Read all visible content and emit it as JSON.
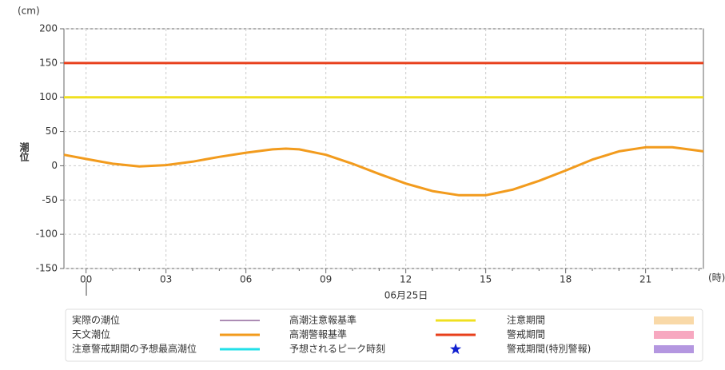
{
  "chart_data": {
    "type": "line",
    "y_unit": "(cm)",
    "x_unit": "(時)",
    "ylabel": "潮位",
    "xlabel": "06月25日",
    "x": [
      -0.83,
      0,
      1,
      2,
      3,
      4,
      5,
      6,
      7,
      7.5,
      8,
      9,
      10,
      11,
      12,
      13,
      14,
      15,
      16,
      17,
      18,
      19,
      20,
      21,
      22,
      23,
      23.17
    ],
    "xlim": [
      -0.83,
      23.17
    ],
    "xticks": [
      {
        "value": 0,
        "label": "00"
      },
      {
        "value": 3,
        "label": "03"
      },
      {
        "value": 6,
        "label": "06"
      },
      {
        "value": 9,
        "label": "09"
      },
      {
        "value": 12,
        "label": "12"
      },
      {
        "value": 15,
        "label": "15"
      },
      {
        "value": 18,
        "label": "18"
      },
      {
        "value": 21,
        "label": "21"
      }
    ],
    "xminorticks": [
      1,
      2,
      4,
      5,
      7,
      8,
      10,
      11,
      13,
      14,
      16,
      17,
      19,
      20,
      22,
      23
    ],
    "ylim": [
      -150,
      200
    ],
    "yticks": [
      -150,
      -100,
      -50,
      0,
      50,
      100,
      150,
      200
    ],
    "grid": true,
    "series": [
      {
        "name": "実際の潮位",
        "color": "#5a1a6a",
        "symbol": "thin-line",
        "values": [
          null,
          null,
          null,
          null,
          null,
          null,
          null,
          null,
          null,
          null,
          null,
          null,
          null,
          null,
          null,
          null,
          null,
          null,
          null,
          null,
          null,
          null,
          null,
          null,
          null,
          null,
          null
        ]
      },
      {
        "name": "天文潮位",
        "color": "#f29b1d",
        "symbol": "line",
        "values": [
          16,
          10,
          3,
          -1,
          1,
          6,
          13,
          19,
          24,
          25,
          24,
          16,
          3,
          -12,
          -26,
          -37,
          -43,
          -43,
          -35,
          -22,
          -7,
          9,
          21,
          27,
          27,
          22,
          21
        ]
      },
      {
        "name": "注意警戒期間の予想最高潮位",
        "color": "#22e0e8",
        "symbol": "line",
        "values": [
          null,
          null,
          null,
          null,
          null,
          null,
          null,
          null,
          null,
          null,
          null,
          null,
          null,
          null,
          null,
          null,
          null,
          null,
          null,
          null,
          null,
          null,
          null,
          null,
          null,
          null,
          null
        ]
      },
      {
        "name": "高潮注意報基準",
        "color": "#f0e020",
        "symbol": "line",
        "value": 100
      },
      {
        "name": "高潮警報基準",
        "color": "#e8401c",
        "symbol": "line",
        "value": 150
      },
      {
        "name": "予想されるピーク時刻",
        "color": "#1020d0",
        "symbol": "star",
        "values": [
          null,
          null,
          null,
          null,
          null,
          null,
          null,
          null,
          null,
          null,
          null,
          null,
          null,
          null,
          null,
          null,
          null,
          null,
          null,
          null,
          null,
          null,
          null,
          null,
          null,
          null,
          null
        ]
      },
      {
        "name": "注意期間",
        "color": "#f9d9a8",
        "symbol": "band",
        "values": [
          null,
          null,
          null,
          null,
          null,
          null,
          null,
          null,
          null,
          null,
          null,
          null,
          null,
          null,
          null,
          null,
          null,
          null,
          null,
          null,
          null,
          null,
          null,
          null,
          null,
          null,
          null
        ]
      },
      {
        "name": "警戒期間",
        "color": "#f7a8c0",
        "symbol": "band",
        "values": [
          null,
          null,
          null,
          null,
          null,
          null,
          null,
          null,
          null,
          null,
          null,
          null,
          null,
          null,
          null,
          null,
          null,
          null,
          null,
          null,
          null,
          null,
          null,
          null,
          null,
          null,
          null
        ]
      },
      {
        "name": "警戒期間(特別警報)",
        "color": "#b497e0",
        "symbol": "band",
        "values": [
          null,
          null,
          null,
          null,
          null,
          null,
          null,
          null,
          null,
          null,
          null,
          null,
          null,
          null,
          null,
          null,
          null,
          null,
          null,
          null,
          null,
          null,
          null,
          null,
          null,
          null,
          null
        ]
      }
    ]
  }
}
